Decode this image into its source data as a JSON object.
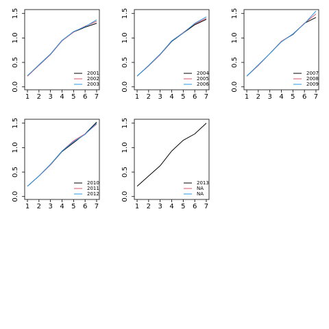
{
  "chart_data": [
    {
      "type": "line",
      "x": [
        1,
        2,
        3,
        4,
        5,
        6,
        7
      ],
      "xlim": [
        0.76,
        7.24
      ],
      "ylim": [
        -0.06,
        1.58
      ],
      "xticks": [
        1,
        2,
        3,
        4,
        5,
        6,
        7
      ],
      "yticks": [
        {
          "value": 0,
          "label": "0.0"
        },
        0.5,
        {
          "value": 1,
          "label": "1.0"
        },
        1.5
      ],
      "legend": "bottom-right",
      "series": [
        {
          "name": "2001",
          "color": "#000000",
          "values": [
            0.22,
            0.45,
            0.67,
            0.95,
            1.12,
            1.22,
            1.3
          ]
        },
        {
          "name": "2002",
          "color": "#df536b",
          "values": [
            0.22,
            0.44,
            0.66,
            0.94,
            1.12,
            1.24,
            1.34
          ]
        },
        {
          "name": "2003",
          "color": "#2297e6",
          "values": [
            0.23,
            0.45,
            0.67,
            0.95,
            1.13,
            1.23,
            1.37
          ]
        }
      ]
    },
    {
      "type": "line",
      "x": [
        1,
        2,
        3,
        4,
        5,
        6,
        7
      ],
      "xlim": [
        0.76,
        7.24
      ],
      "ylim": [
        -0.06,
        1.58
      ],
      "xticks": [
        1,
        2,
        3,
        4,
        5,
        6,
        7
      ],
      "yticks": [
        {
          "value": 0,
          "label": "0.0"
        },
        0.5,
        {
          "value": 1,
          "label": "1.0"
        },
        1.5
      ],
      "legend": "bottom-right",
      "series": [
        {
          "name": "2004",
          "color": "#000000",
          "values": [
            0.22,
            0.43,
            0.66,
            0.93,
            1.1,
            1.27,
            1.38
          ]
        },
        {
          "name": "2005",
          "color": "#df536b",
          "values": [
            0.22,
            0.43,
            0.66,
            0.94,
            1.11,
            1.29,
            1.4
          ]
        },
        {
          "name": "2006",
          "color": "#2297e6",
          "values": [
            0.22,
            0.44,
            0.67,
            0.94,
            1.1,
            1.3,
            1.43
          ]
        }
      ]
    },
    {
      "type": "line",
      "x": [
        1,
        2,
        3,
        4,
        5,
        6,
        7
      ],
      "xlim": [
        0.76,
        7.24
      ],
      "ylim": [
        -0.06,
        1.58
      ],
      "xticks": [
        1,
        2,
        3,
        4,
        5,
        6,
        7
      ],
      "yticks": [
        {
          "value": 0,
          "label": "0.0"
        },
        0.5,
        {
          "value": 1,
          "label": "1.0"
        },
        1.5
      ],
      "legend": "bottom-right",
      "series": [
        {
          "name": "2007",
          "color": "#000000",
          "values": [
            0.22,
            0.44,
            0.68,
            0.93,
            1.07,
            1.3,
            1.42
          ]
        },
        {
          "name": "2008",
          "color": "#df536b",
          "values": [
            0.22,
            0.44,
            0.68,
            0.93,
            1.08,
            1.3,
            1.49
          ]
        },
        {
          "name": "2009",
          "color": "#2297e6",
          "values": [
            0.22,
            0.45,
            0.68,
            0.92,
            1.08,
            1.29,
            1.55
          ]
        }
      ]
    },
    {
      "type": "line",
      "x": [
        1,
        2,
        3,
        4,
        5,
        6,
        7
      ],
      "xlim": [
        0.76,
        7.24
      ],
      "ylim": [
        -0.06,
        1.58
      ],
      "xticks": [
        1,
        2,
        3,
        4,
        5,
        6,
        7
      ],
      "yticks": [
        {
          "value": 0,
          "label": "0.0"
        },
        0.5,
        {
          "value": 1,
          "label": "1.0"
        },
        1.5
      ],
      "legend": "bottom-right",
      "series": [
        {
          "name": "2010",
          "color": "#000000",
          "values": [
            0.21,
            0.42,
            0.65,
            0.92,
            1.1,
            1.28,
            1.52
          ]
        },
        {
          "name": "2011",
          "color": "#df536b",
          "values": [
            0.21,
            0.42,
            0.65,
            0.93,
            1.14,
            1.28,
            1.48
          ]
        },
        {
          "name": "2012",
          "color": "#2297e6",
          "values": [
            0.21,
            0.42,
            0.66,
            0.93,
            1.12,
            1.27,
            1.5
          ]
        }
      ]
    },
    {
      "type": "line",
      "x": [
        1,
        2,
        3,
        4,
        5,
        6,
        7
      ],
      "xlim": [
        0.76,
        7.24
      ],
      "ylim": [
        -0.06,
        1.58
      ],
      "xticks": [
        1,
        2,
        3,
        4,
        5,
        6,
        7
      ],
      "yticks": [
        {
          "value": 0,
          "label": "0.0"
        },
        0.5,
        {
          "value": 1,
          "label": "1.0"
        },
        1.5
      ],
      "legend": "bottom-right",
      "series": [
        {
          "name": "2013",
          "color": "#000000",
          "values": [
            0.21,
            0.42,
            0.63,
            0.93,
            1.15,
            1.28,
            1.5
          ]
        },
        {
          "name": "NA",
          "color": "#df536b",
          "values": [
            null,
            null,
            null,
            null,
            null,
            null,
            null
          ]
        },
        {
          "name": "NA",
          "color": "#2297e6",
          "values": [
            null,
            null,
            null,
            null,
            null,
            null,
            null
          ]
        }
      ]
    }
  ]
}
